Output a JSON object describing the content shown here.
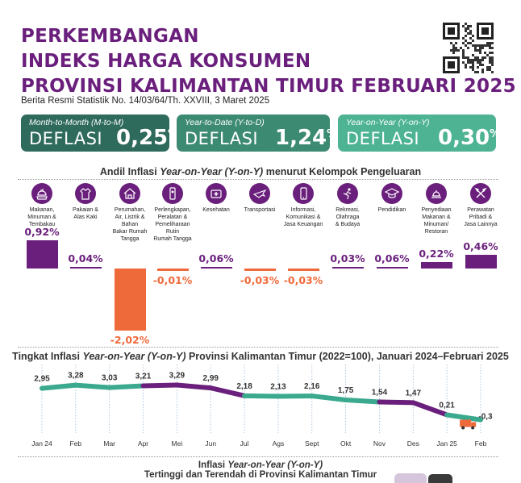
{
  "header": {
    "title_lines": [
      "PERKEMBANGAN",
      "INDEKS HARGA KONSUMEN",
      "PROVINSI KALIMANTAN TIMUR FEBRUARI 2025"
    ],
    "subtitle": "Berita Resmi Statistik No. 14/03/64/Th. XXVIII, 3 Maret 2025"
  },
  "colors": {
    "purple": "#6a1f7c",
    "dark_green": "#2f6b5d",
    "mid_green": "#3d8a72",
    "light_green": "#4db393",
    "orange": "#ef6a3a",
    "line_teal": "#3aa98e",
    "line_purple": "#6a1f7c"
  },
  "boxes": [
    {
      "label": "Month-to-Month (M-to-M)",
      "kind": "DEFLASI",
      "value": "0,25",
      "unit": "%"
    },
    {
      "label": "Year-to-Date (Y-to-D)",
      "kind": "DEFLASI",
      "value": "1,24",
      "unit": "%"
    },
    {
      "label": "Year-on-Year (Y-on-Y)",
      "kind": "DEFLASI",
      "value": "0,30",
      "unit": "%"
    }
  ],
  "andil": {
    "title_pre": "Andil Inflasi ",
    "title_it": "Year-on-Year (Y-on-Y)",
    "title_post": " menurut Kelompok Pengeluaran"
  },
  "trend": {
    "title_pre": "Tingkat Inflasi ",
    "title_it": "Year-on-Year (Y-on-Y)",
    "title_post": " Provinsi Kalimantan Timur (2022=100), Januari 2024–Februari 2025"
  },
  "footer": {
    "line1_pre": "Inflasi ",
    "line1_it": "Year-on-Year (Y-on-Y)",
    "line2": "Tertinggi dan Terendah di Provinsi Kalimantan Timur"
  },
  "chart_data": [
    {
      "type": "bar",
      "title": "Andil Inflasi Year-on-Year (Y-on-Y) menurut Kelompok Pengeluaran",
      "categories": [
        [
          "Makanan,",
          "Minuman &",
          "Tembakau"
        ],
        [
          "Pakaian &",
          "Alas Kaki"
        ],
        [
          "Perumahan,",
          "Air, Listrik &",
          "Bahan",
          "Bakar Rumah",
          "Tangga"
        ],
        [
          "Perlengkapan,",
          "Peralatan &",
          "Pemeliharaan",
          "Rutin",
          "Rumah Tangga"
        ],
        [
          "Kesehatan"
        ],
        [
          "Transportasi"
        ],
        [
          "Informasi,",
          "Komunikasi &",
          "Jasa Keuangan"
        ],
        [
          "Rekreasi,",
          "Olahraga",
          "& Budaya"
        ],
        [
          "Pendidikan"
        ],
        [
          "Penyediaan",
          "Makanan &",
          "Minuman/",
          "Restoran"
        ],
        [
          "Perawatan",
          "Pribadi &",
          "Jasa Lainnya"
        ]
      ],
      "icons": [
        "food-icon",
        "clothing-icon",
        "house-icon",
        "appliance-icon",
        "health-icon",
        "plane-icon",
        "phone-icon",
        "sport-icon",
        "graduation-icon",
        "restaurant-icon",
        "tools-icon"
      ],
      "values": [
        0.92,
        0.04,
        -2.02,
        -0.01,
        0.06,
        -0.03,
        -0.03,
        0.03,
        0.06,
        0.22,
        0.46
      ],
      "labels": [
        "0,92%",
        "0,04%",
        "-2,02%",
        "-0,01%",
        "0,06%",
        "-0,03%",
        "-0,03%",
        "0,03%",
        "0,06%",
        "0,22%",
        "0,46%"
      ]
    },
    {
      "type": "line",
      "title": "Tingkat Inflasi Year-on-Year (Y-on-Y) Provinsi Kalimantan Timur (2022=100), Januari 2024–Februari 2025",
      "x": [
        "Jan 24",
        "Feb",
        "Mar",
        "Apr",
        "Mei",
        "Jun",
        "Jul",
        "Ags",
        "Sept",
        "Okt",
        "Nov",
        "Des",
        "Jan 25",
        "Feb"
      ],
      "values": [
        2.95,
        3.28,
        3.03,
        3.21,
        3.29,
        2.99,
        2.18,
        2.13,
        2.16,
        1.75,
        1.54,
        1.47,
        0.21,
        -0.3
      ],
      "labels": [
        "2,95",
        "3,28",
        "3,03",
        "3,21",
        "3,29",
        "2,99",
        "2,18",
        "2,13",
        "2,16",
        "1,75",
        "1,54",
        "1,47",
        "0,21",
        "-0,3"
      ],
      "grid": true
    }
  ]
}
